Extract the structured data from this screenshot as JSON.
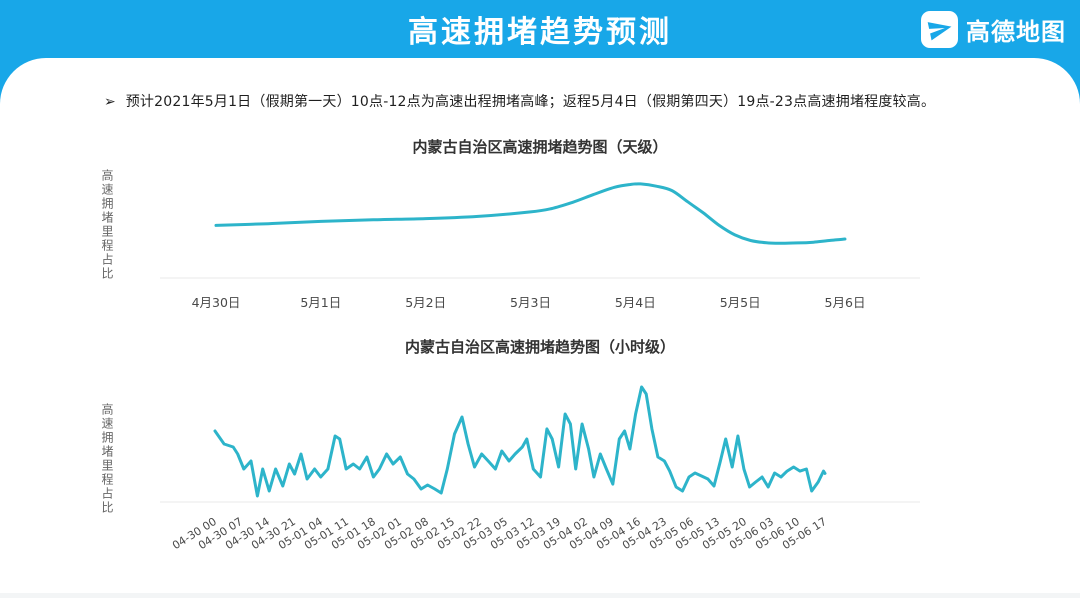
{
  "header": {
    "title": "高速拥堵趋势预测",
    "brand": "高德地图",
    "brand_icon": "paper-plane-icon"
  },
  "summary": {
    "bullet_marker": "➢",
    "text": "预计2021年5月1日（假期第一天）10点-12点为高速出程拥堵高峰；返程5月4日（假期第四天）19点-23点高速拥堵程度较高。"
  },
  "colors": {
    "header_blue": "#18a7e8",
    "line_teal": "#2db4ca",
    "axis_gray": "#e9e9e9"
  },
  "chart_data": [
    {
      "type": "line",
      "title": "内蒙古自治区高速拥堵趋势图（天级）",
      "ylabel": "高速拥堵里程占比",
      "xlabel": "",
      "categories": [
        "4月30日",
        "5月1日",
        "5月2日",
        "5月3日",
        "5月4日",
        "5月5日",
        "5月6日"
      ],
      "x_unit": "day_index_0_to_6",
      "y_axis_ticks_visible": false,
      "grid": false,
      "legend": "none",
      "value_note": "relative congestion mileage share, estimated 0-100 scale; peak on 5月4日",
      "points": [
        [
          0,
          47
        ],
        [
          0.5,
          48.5
        ],
        [
          1,
          50.5
        ],
        [
          1.5,
          52
        ],
        [
          2,
          53
        ],
        [
          2.5,
          55
        ],
        [
          3,
          59
        ],
        [
          3.2,
          62
        ],
        [
          3.4,
          67.5
        ],
        [
          3.6,
          74.5
        ],
        [
          3.8,
          81
        ],
        [
          3.95,
          83.5
        ],
        [
          4.05,
          84
        ],
        [
          4.2,
          82
        ],
        [
          4.35,
          78
        ],
        [
          4.5,
          68
        ],
        [
          4.65,
          58
        ],
        [
          4.8,
          47
        ],
        [
          4.95,
          38.5
        ],
        [
          5.1,
          33.5
        ],
        [
          5.25,
          31.5
        ],
        [
          5.4,
          31
        ],
        [
          5.55,
          31.3
        ],
        [
          5.7,
          32
        ],
        [
          5.85,
          33.5
        ],
        [
          6,
          34.8
        ]
      ]
    },
    {
      "type": "line",
      "title": "内蒙古自治区高速拥堵趋势图（小时级）",
      "ylabel": "高速拥堵里程占比",
      "xlabel": "",
      "categories": [
        "04-30 00",
        "04-30 07",
        "04-30 14",
        "04-30 21",
        "05-01 04",
        "05-01 11",
        "05-01 18",
        "05-02 01",
        "05-02 08",
        "05-02 15",
        "05-02 22",
        "05-03 05",
        "05-03 12",
        "05-03 19",
        "05-04 02",
        "05-04 09",
        "05-04 16",
        "05-04 23",
        "05-05 06",
        "05-05 13",
        "05-05 20",
        "05-06 03",
        "05-06 10",
        "05-06 17"
      ],
      "x_unit": "hours_since_04-30_00",
      "y_axis_ticks_visible": false,
      "grid": false,
      "legend": "none",
      "value_note": "relative congestion mileage share, estimated 0-100 scale; max spike near 05-04 16",
      "points": [
        [
          0,
          54.6
        ],
        [
          2.4,
          44.6
        ],
        [
          4.8,
          42.3
        ],
        [
          6,
          36.9
        ],
        [
          7.6,
          25.4
        ],
        [
          9.5,
          31.5
        ],
        [
          11.2,
          4.6
        ],
        [
          12.6,
          25.4
        ],
        [
          14.3,
          8.5
        ],
        [
          16,
          25.4
        ],
        [
          17.9,
          12.3
        ],
        [
          19.6,
          29.2
        ],
        [
          21,
          21.5
        ],
        [
          22.7,
          36.9
        ],
        [
          24.3,
          17.7
        ],
        [
          26.3,
          25.4
        ],
        [
          27.9,
          19.2
        ],
        [
          29.8,
          25.4
        ],
        [
          31.7,
          50.8
        ],
        [
          32.9,
          48.5
        ],
        [
          34.6,
          25.4
        ],
        [
          36.5,
          29.2
        ],
        [
          38.2,
          25.4
        ],
        [
          40.1,
          34.6
        ],
        [
          41.8,
          19.2
        ],
        [
          43.4,
          25.4
        ],
        [
          45.3,
          36.9
        ],
        [
          47,
          29.2
        ],
        [
          48.9,
          34.6
        ],
        [
          50.8,
          21.5
        ],
        [
          52.5,
          17.7
        ],
        [
          54.4,
          10
        ],
        [
          56.1,
          13.1
        ],
        [
          58,
          10
        ],
        [
          59.7,
          6.9
        ],
        [
          61.3,
          25.4
        ],
        [
          63.2,
          52.3
        ],
        [
          65.2,
          65.4
        ],
        [
          66.8,
          44.6
        ],
        [
          68.5,
          26.9
        ],
        [
          70.4,
          36.9
        ],
        [
          72.1,
          31.5
        ],
        [
          74,
          25.4
        ],
        [
          75.7,
          39.2
        ],
        [
          77.6,
          31.5
        ],
        [
          79.2,
          36.9
        ],
        [
          81.1,
          42.3
        ],
        [
          82.3,
          48.5
        ],
        [
          84,
          25.4
        ],
        [
          85.9,
          19.2
        ],
        [
          87.6,
          56.2
        ],
        [
          89,
          48.5
        ],
        [
          90.7,
          26.9
        ],
        [
          92.4,
          67.7
        ],
        [
          93.8,
          60
        ],
        [
          95.2,
          25.4
        ],
        [
          96.9,
          60
        ],
        [
          98.6,
          40.8
        ],
        [
          100,
          19.2
        ],
        [
          101.7,
          36.9
        ],
        [
          103.3,
          25.4
        ],
        [
          105,
          13.8
        ],
        [
          106.7,
          48.5
        ],
        [
          108.1,
          54.6
        ],
        [
          109.5,
          40.8
        ],
        [
          111,
          67.7
        ],
        [
          112.6,
          88.5
        ],
        [
          113.8,
          83.1
        ],
        [
          115.3,
          56.2
        ],
        [
          116.9,
          34.6
        ],
        [
          118.6,
          31.5
        ],
        [
          120,
          23.8
        ],
        [
          121.7,
          11.5
        ],
        [
          123.4,
          8.5
        ],
        [
          125.1,
          19.2
        ],
        [
          126.7,
          22.3
        ],
        [
          128.4,
          20
        ],
        [
          130.1,
          17.7
        ],
        [
          131.7,
          12.3
        ],
        [
          133.4,
          31.5
        ],
        [
          134.8,
          48.5
        ],
        [
          136.5,
          26.9
        ],
        [
          138,
          50.8
        ],
        [
          139.6,
          25.4
        ],
        [
          141.1,
          11.5
        ],
        [
          142.7,
          15.4
        ],
        [
          144.4,
          19.2
        ],
        [
          146,
          11.5
        ],
        [
          147.7,
          22.3
        ],
        [
          149.4,
          19.2
        ],
        [
          151,
          23.8
        ],
        [
          152.7,
          26.9
        ],
        [
          154.4,
          23.8
        ],
        [
          156.1,
          25.4
        ],
        [
          157.5,
          8.5
        ],
        [
          159.2,
          15.4
        ],
        [
          160.6,
          23.8
        ],
        [
          161,
          22
        ]
      ]
    }
  ]
}
